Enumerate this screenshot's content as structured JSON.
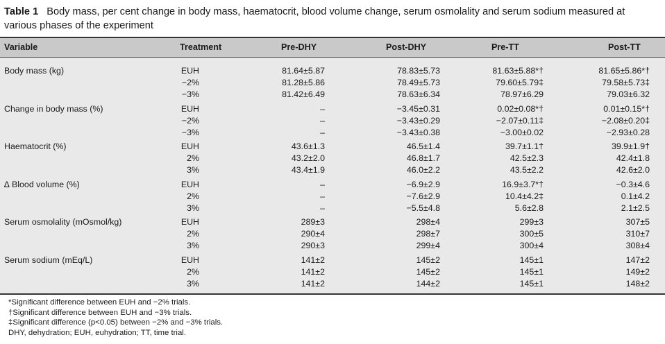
{
  "caption": {
    "label": "Table 1",
    "text": "Body mass, per cent change in body mass, haematocrit, blood volume change, serum osmolality and serum sodium measured at various phases of the experiment"
  },
  "headers": {
    "variable": "Variable",
    "treatment": "Treatment",
    "pre_dhy": "Pre-DHY",
    "post_dhy": "Post-DHY",
    "pre_tt": "Pre-TT",
    "post_tt": "Post-TT"
  },
  "groups": [
    {
      "variable": "Body mass (kg)",
      "rows": [
        {
          "treatment": "EUH",
          "pre_dhy": "81.64±5.87",
          "post_dhy": "78.83±5.73",
          "pre_tt": "81.63±5.88*†",
          "post_tt": "81.65±5.86*†"
        },
        {
          "treatment": "−2%",
          "pre_dhy": "81.28±5.86",
          "post_dhy": "78.49±5.73",
          "pre_tt": "79.60±5.79‡",
          "post_tt": "79.58±5.73‡"
        },
        {
          "treatment": "−3%",
          "pre_dhy": "81.42±6.49",
          "post_dhy": "78.63±6.34",
          "pre_tt": "78.97±6.29",
          "post_tt": "79.03±6.32"
        }
      ]
    },
    {
      "variable": "Change in body mass (%)",
      "rows": [
        {
          "treatment": "EUH",
          "pre_dhy": "–",
          "post_dhy": "−3.45±0.31",
          "pre_tt": "0.02±0.08*†",
          "post_tt": "0.01±0.15*†"
        },
        {
          "treatment": "−2%",
          "pre_dhy": "–",
          "post_dhy": "−3.43±0.29",
          "pre_tt": "−2.07±0.11‡",
          "post_tt": "−2.08±0.20‡"
        },
        {
          "treatment": "−3%",
          "pre_dhy": "–",
          "post_dhy": "−3.43±0.38",
          "pre_tt": "−3.00±0.02",
          "post_tt": "−2.93±0.28"
        }
      ]
    },
    {
      "variable": "Haematocrit (%)",
      "rows": [
        {
          "treatment": "EUH",
          "pre_dhy": "43.6±1.3",
          "post_dhy": "46.5±1.4",
          "pre_tt": "39.7±1.1†",
          "post_tt": "39.9±1.9†"
        },
        {
          "treatment": "2%",
          "pre_dhy": "43.2±2.0",
          "post_dhy": "46.8±1.7",
          "pre_tt": "42.5±2.3",
          "post_tt": "42.4±1.8"
        },
        {
          "treatment": "3%",
          "pre_dhy": "43.4±1.9",
          "post_dhy": "46.0±2.2",
          "pre_tt": "43.5±2.2",
          "post_tt": "42.6±2.0"
        }
      ]
    },
    {
      "variable": "∆ Blood volume (%)",
      "rows": [
        {
          "treatment": "EUH",
          "pre_dhy": "–",
          "post_dhy": "−6.9±2.9",
          "pre_tt": "16.9±3.7*†",
          "post_tt": "−0.3±4.6"
        },
        {
          "treatment": "2%",
          "pre_dhy": "–",
          "post_dhy": "−7.6±2.9",
          "pre_tt": "10.4±4.2‡",
          "post_tt": "0.1±4.2"
        },
        {
          "treatment": "3%",
          "pre_dhy": "–",
          "post_dhy": "−5.5±4.8",
          "pre_tt": "5.6±2.8",
          "post_tt": "2.1±2.5"
        }
      ]
    },
    {
      "variable": "Serum osmolality (mOsmol/kg)",
      "rows": [
        {
          "treatment": "EUH",
          "pre_dhy": "289±3",
          "post_dhy": "298±4",
          "pre_tt": "299±3",
          "post_tt": "307±5"
        },
        {
          "treatment": "2%",
          "pre_dhy": "290±4",
          "post_dhy": "298±7",
          "pre_tt": "300±5",
          "post_tt": "310±7"
        },
        {
          "treatment": "3%",
          "pre_dhy": "290±3",
          "post_dhy": "299±4",
          "pre_tt": "300±4",
          "post_tt": "308±4"
        }
      ]
    },
    {
      "variable": "Serum sodium (mEq/L)",
      "rows": [
        {
          "treatment": "EUH",
          "pre_dhy": "141±2",
          "post_dhy": "145±2",
          "pre_tt": "145±1",
          "post_tt": "147±2"
        },
        {
          "treatment": "2%",
          "pre_dhy": "141±2",
          "post_dhy": "145±2",
          "pre_tt": "145±1",
          "post_tt": "149±2"
        },
        {
          "treatment": "3%",
          "pre_dhy": "141±2",
          "post_dhy": "144±2",
          "pre_tt": "145±1",
          "post_tt": "148±2"
        }
      ]
    }
  ],
  "footnotes": [
    "*Significant difference between EUH and −2% trials.",
    "†Significant difference between EUH and −3% trials.",
    "‡Significant difference (p<0.05) between −2% and −3% trials.",
    "DHY, dehydration; EUH, euhydration; TT, time trial."
  ]
}
